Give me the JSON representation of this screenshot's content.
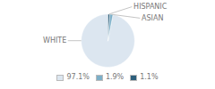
{
  "chart_data": {
    "type": "pie",
    "categories": [
      "WHITE",
      "ASIAN",
      "HISPANIC"
    ],
    "values": [
      97.1,
      1.9,
      1.1
    ],
    "value_labels": [
      "97.1%",
      "1.9%",
      "1.1%"
    ],
    "colors": [
      "#dce6f0",
      "#7cafc8",
      "#2d5f7c"
    ],
    "legend": "bottom"
  }
}
